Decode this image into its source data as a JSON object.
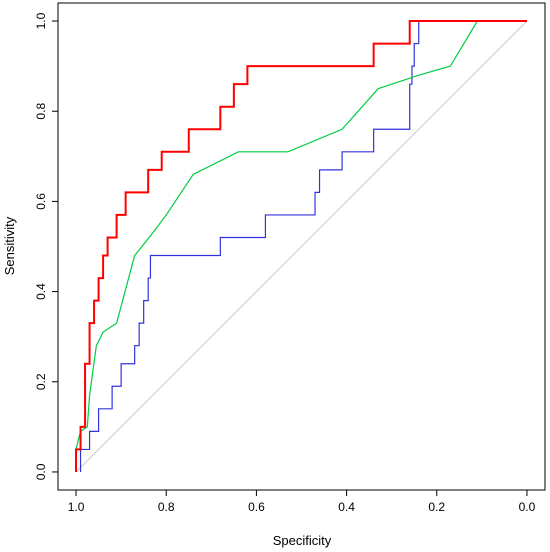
{
  "chart_data": {
    "type": "line",
    "xlabel": "Specificity",
    "ylabel": "Sensitivity",
    "xlim": [
      1.04,
      -0.04
    ],
    "ylim": [
      -0.04,
      1.04
    ],
    "x_reversed": true,
    "grid": false,
    "legend": "none",
    "xticks": [
      "1.0",
      "0.8",
      "0.6",
      "0.4",
      "0.2",
      "0.0"
    ],
    "xtick_values": [
      1.0,
      0.8,
      0.6,
      0.4,
      0.2,
      0.0
    ],
    "yticks": [
      "0.0",
      "0.2",
      "0.4",
      "0.6",
      "0.8",
      "1.0"
    ],
    "ytick_values": [
      0.0,
      0.2,
      0.4,
      0.6,
      0.8,
      1.0
    ],
    "reference_line": {
      "x": [
        1.0,
        0.0
      ],
      "y": [
        0.0,
        1.0
      ],
      "color": "#c8c8c8"
    },
    "series": [
      {
        "color": "#ff0000",
        "step": true,
        "x": [
          1.0,
          0.99,
          0.98,
          0.97,
          0.96,
          0.95,
          0.94,
          0.93,
          0.92,
          0.91,
          0.9,
          0.89,
          0.88,
          0.87,
          0.84,
          0.83,
          0.81,
          0.8,
          0.75,
          0.73,
          0.68,
          0.67,
          0.65,
          0.64,
          0.62,
          0.61,
          0.34,
          0.33,
          0.26,
          0.25,
          0.22,
          0.0
        ],
        "y": [
          0.0,
          0.05,
          0.1,
          0.24,
          0.33,
          0.38,
          0.43,
          0.48,
          0.52,
          0.52,
          0.57,
          0.57,
          0.62,
          0.62,
          0.62,
          0.67,
          0.67,
          0.71,
          0.71,
          0.76,
          0.76,
          0.81,
          0.81,
          0.86,
          0.86,
          0.9,
          0.9,
          0.95,
          0.95,
          1.0,
          1.0,
          1.0
        ]
      },
      {
        "color": "#00cc44",
        "step": false,
        "x": [
          1.0,
          0.99,
          0.975,
          0.97,
          0.955,
          0.94,
          0.91,
          0.87,
          0.83,
          0.8,
          0.74,
          0.64,
          0.53,
          0.41,
          0.33,
          0.24,
          0.17,
          0.11,
          0.0
        ],
        "y": [
          0.05,
          0.09,
          0.1,
          0.17,
          0.28,
          0.31,
          0.33,
          0.48,
          0.53,
          0.57,
          0.66,
          0.71,
          0.71,
          0.76,
          0.85,
          0.88,
          0.9,
          1.0,
          1.0
        ]
      },
      {
        "color": "#3333dd",
        "step": true,
        "x": [
          0.99,
          0.97,
          0.95,
          0.92,
          0.9,
          0.87,
          0.86,
          0.85,
          0.84,
          0.835,
          0.83,
          0.68,
          0.66,
          0.58,
          0.56,
          0.47,
          0.46,
          0.41,
          0.4,
          0.34,
          0.33,
          0.26,
          0.255,
          0.25,
          0.24,
          0.23,
          0.22,
          0.0
        ],
        "y": [
          0.0,
          0.05,
          0.09,
          0.14,
          0.19,
          0.24,
          0.28,
          0.33,
          0.38,
          0.43,
          0.48,
          0.48,
          0.52,
          0.52,
          0.57,
          0.57,
          0.62,
          0.67,
          0.71,
          0.71,
          0.76,
          0.76,
          0.86,
          0.9,
          0.95,
          1.0,
          1.0,
          1.0
        ]
      }
    ]
  }
}
